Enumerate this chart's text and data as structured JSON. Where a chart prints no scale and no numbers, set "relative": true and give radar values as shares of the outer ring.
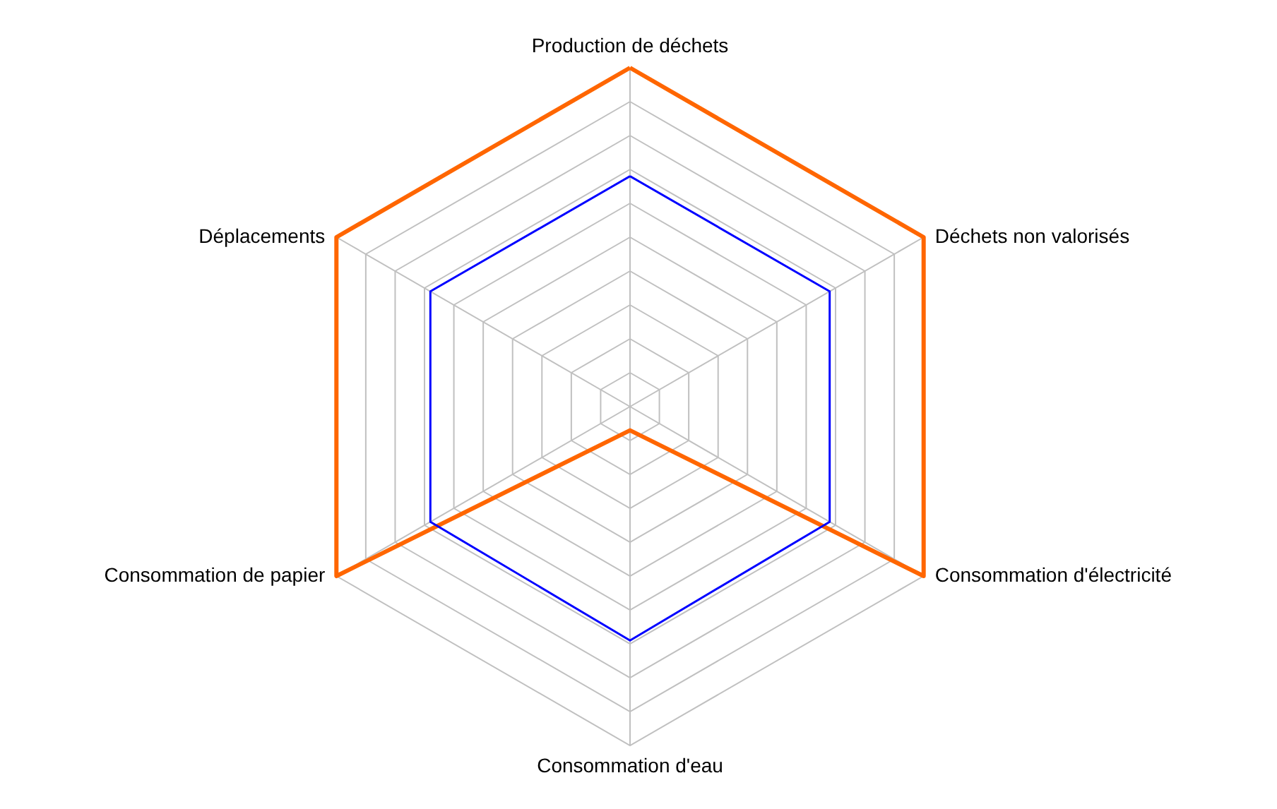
{
  "chart_data": {
    "type": "radar",
    "relative": true,
    "grid": true,
    "line_style": "solid",
    "categories": [
      "Production de déchets",
      "Déchets non valorisés",
      "Consommation d'électricité",
      "Consommation d'eau",
      "Consommation de papier",
      "Déplacements"
    ],
    "series": [
      {
        "color": "#ff6600",
        "values": [
          1,
          1,
          1,
          0.07,
          1,
          1
        ]
      },
      {
        "color": "#0000ff",
        "values": [
          0.68,
          0.68,
          0.68,
          0.69,
          0.68,
          0.68
        ]
      }
    ]
  }
}
